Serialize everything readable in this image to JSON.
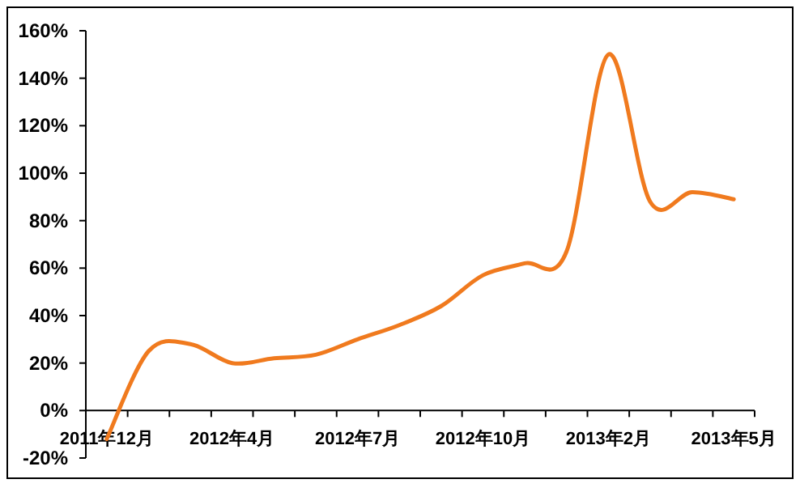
{
  "chart_data": {
    "type": "line",
    "categories": [
      "2011年12月",
      null,
      null,
      "2012年4月",
      null,
      null,
      "2012年7月",
      null,
      null,
      "2012年10月",
      null,
      null,
      "2013年2月",
      null,
      null,
      "2013年5月"
    ],
    "series": [
      {
        "color": "#f07a1e",
        "values": [
          -12,
          25,
          28,
          20,
          22,
          23.5,
          30,
          36,
          44,
          57,
          62,
          67,
          150,
          88,
          92,
          89
        ]
      }
    ],
    "ylim": [
      -20,
      160
    ],
    "yticks": [
      {
        "value": -20,
        "label": "-20%"
      },
      {
        "value": 0,
        "label": "0%"
      },
      {
        "value": 20,
        "label": "20%"
      },
      {
        "value": 40,
        "label": "40%"
      },
      {
        "value": 60,
        "label": "60%"
      },
      {
        "value": 80,
        "label": "80%"
      },
      {
        "value": 100,
        "label": "100%"
      },
      {
        "value": 120,
        "label": "120%"
      },
      {
        "value": 140,
        "label": "140%"
      },
      {
        "value": 160,
        "label": "160%"
      }
    ],
    "grid": false,
    "marker": "none",
    "line_style": "solid"
  }
}
